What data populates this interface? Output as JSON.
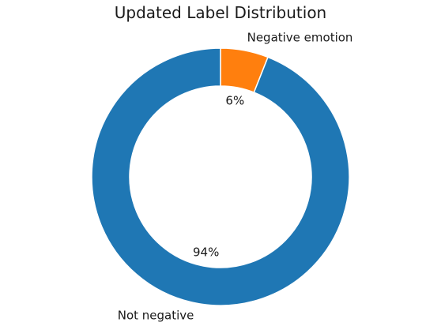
{
  "chart_data": {
    "type": "pie",
    "title": "Updated Label Distribution",
    "categories": [
      "Negative emotion",
      "Not negative"
    ],
    "values": [
      6,
      94
    ],
    "value_labels": [
      "6%",
      "94%"
    ],
    "colors": [
      "#ff7f0e",
      "#1f77b4"
    ],
    "donut": true,
    "legend": "none"
  }
}
